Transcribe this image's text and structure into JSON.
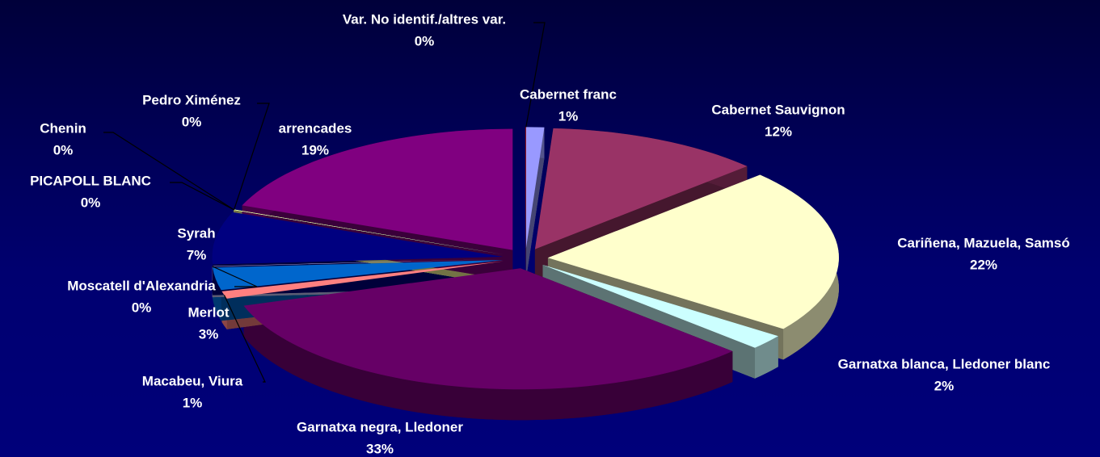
{
  "chart_data": {
    "type": "pie",
    "categories": [
      "Var. No identif./altres var.",
      "Cabernet franc",
      "Cabernet Sauvignon",
      "Cariñena, Mazuela, Samsó",
      "Garnatxa blanca, Lledoner blanc",
      "Garnatxa negra, Lledoner",
      "Macabeu, Viura",
      "Merlot",
      "Moscatell d'Alexandria",
      "Syrah",
      "PICAPOLL BLANC",
      "Chenin",
      "Pedro Ximénez",
      "arrencades"
    ],
    "values": [
      0,
      1,
      12,
      22,
      2,
      33,
      1,
      3,
      0,
      7,
      0,
      0,
      0,
      19
    ],
    "value_labels": [
      "0%",
      "1%",
      "12%",
      "22%",
      "2%",
      "33%",
      "1%",
      "3%",
      "0%",
      "7%",
      "0%",
      "0%",
      "0%",
      "19%"
    ],
    "colors": [
      "#990000",
      "#9999ff",
      "#993366",
      "#ffffcc",
      "#ccffff",
      "#660066",
      "#ff8080",
      "#0066cc",
      "#ccccff",
      "#000080",
      "#00cc99",
      "#ccffcc",
      "#ffff99",
      "#800080"
    ]
  }
}
